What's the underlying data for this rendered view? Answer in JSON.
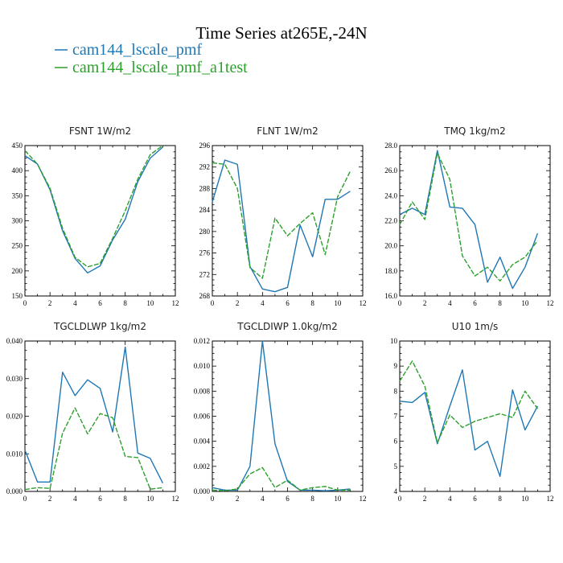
{
  "figure": {
    "title": "Time Series at265E,-24N",
    "legend": [
      {
        "label": "cam144_lscale_pmf",
        "color": "#1f77b4"
      },
      {
        "label": "cam144_lscale_pmf_a1test",
        "color": "#2ca02c"
      }
    ]
  },
  "chart_data": [
    {
      "type": "line",
      "title": "FSNT   1W/m2",
      "xlim": [
        0,
        12
      ],
      "ylim": [
        150,
        450
      ],
      "xticks": [
        "0",
        "2",
        "4",
        "6",
        "8",
        "10",
        "12"
      ],
      "yticks": [
        "150",
        "200",
        "250",
        "300",
        "350",
        "400",
        "450"
      ],
      "x": [
        0,
        1,
        2,
        3,
        4,
        5,
        6,
        7,
        8,
        9,
        10,
        11
      ],
      "series": [
        {
          "name": "cam144_lscale_pmf",
          "values": [
            430,
            413,
            362,
            280,
            225,
            196,
            210,
            262,
            303,
            378,
            425,
            447
          ]
        },
        {
          "name": "cam144_lscale_pmf_a1test",
          "values": [
            440,
            413,
            365,
            285,
            227,
            208,
            215,
            265,
            320,
            383,
            432,
            450
          ]
        }
      ]
    },
    {
      "type": "line",
      "title": "FLNT   1W/m2",
      "xlim": [
        0,
        12
      ],
      "ylim": [
        268,
        296
      ],
      "xticks": [
        "0",
        "2",
        "4",
        "6",
        "8",
        "10",
        "12"
      ],
      "yticks": [
        "268",
        "272",
        "276",
        "280",
        "284",
        "288",
        "292",
        "296"
      ],
      "x": [
        0,
        1,
        2,
        3,
        4,
        5,
        6,
        7,
        8,
        9,
        10,
        11
      ],
      "series": [
        {
          "name": "cam144_lscale_pmf",
          "values": [
            285.5,
            293.3,
            292.5,
            273.5,
            269.3,
            268.8,
            269.6,
            281.2,
            275.3,
            286.0,
            286.0,
            287.5
          ]
        },
        {
          "name": "cam144_lscale_pmf_a1test",
          "values": [
            292.8,
            292.5,
            288.0,
            273.3,
            271.3,
            282.5,
            279.2,
            281.5,
            283.5,
            275.7,
            286.5,
            291.2
          ]
        }
      ]
    },
    {
      "type": "line",
      "title": "TMQ   1kg/m2",
      "xlim": [
        0,
        12
      ],
      "ylim": [
        16,
        28
      ],
      "xticks": [
        "0",
        "2",
        "4",
        "6",
        "8",
        "10",
        "12"
      ],
      "yticks": [
        "16.0",
        "18.0",
        "20.0",
        "22.0",
        "24.0",
        "26.0",
        "28.0"
      ],
      "x": [
        0,
        1,
        2,
        3,
        4,
        5,
        6,
        7,
        8,
        9,
        10,
        11
      ],
      "series": [
        {
          "name": "cam144_lscale_pmf",
          "values": [
            22.5,
            23.0,
            22.5,
            27.6,
            23.1,
            23.0,
            21.7,
            17.1,
            19.1,
            16.6,
            18.3,
            21.0
          ]
        },
        {
          "name": "cam144_lscale_pmf_a1test",
          "values": [
            21.7,
            23.5,
            22.1,
            27.4,
            25.3,
            19.2,
            17.6,
            18.3,
            17.2,
            18.5,
            19.1,
            20.4
          ]
        }
      ]
    },
    {
      "type": "line",
      "title": "TGCLDLWP   1kg/m2",
      "xlim": [
        0,
        12
      ],
      "ylim": [
        0,
        0.04
      ],
      "xticks": [
        "0",
        "2",
        "4",
        "6",
        "8",
        "10",
        "12"
      ],
      "yticks": [
        "0.000",
        "0.010",
        "0.020",
        "0.030",
        "0.040"
      ],
      "x": [
        0,
        1,
        2,
        3,
        4,
        5,
        6,
        7,
        8,
        9,
        10,
        11
      ],
      "series": [
        {
          "name": "cam144_lscale_pmf",
          "values": [
            0.011,
            0.0025,
            0.0025,
            0.0317,
            0.0255,
            0.0297,
            0.0274,
            0.0158,
            0.0384,
            0.0102,
            0.0088,
            0.0022
          ]
        },
        {
          "name": "cam144_lscale_pmf_a1test",
          "values": [
            0.0005,
            0.001,
            0.0008,
            0.0155,
            0.0222,
            0.0153,
            0.0207,
            0.0196,
            0.0093,
            0.009,
            0.0006,
            0.001
          ]
        }
      ]
    },
    {
      "type": "line",
      "title": "TGCLDIWP   1.0kg/m2",
      "xlim": [
        0,
        12
      ],
      "ylim": [
        0,
        0.012
      ],
      "xticks": [
        "0",
        "2",
        "4",
        "6",
        "8",
        "10",
        "12"
      ],
      "yticks": [
        "0.000",
        "0.002",
        "0.004",
        "0.006",
        "0.008",
        "0.010",
        "0.012"
      ],
      "x": [
        0,
        1,
        2,
        3,
        4,
        5,
        6,
        7,
        8,
        9,
        10,
        11
      ],
      "series": [
        {
          "name": "cam144_lscale_pmf",
          "values": [
            0.0003,
            0.0001,
            0.0001,
            0.002,
            0.012,
            0.0038,
            0.0008,
            0.0001,
            0.0001,
            5e-05,
            0.0001,
            0.0002
          ]
        },
        {
          "name": "cam144_lscale_pmf_a1test",
          "values": [
            0.0001,
            5e-05,
            0.0002,
            0.0014,
            0.0019,
            0.0003,
            0.0009,
            0.0001,
            0.0003,
            0.0004,
            0.0001,
            0.0001
          ]
        }
      ]
    },
    {
      "type": "line",
      "title": "U10   1m/s",
      "xlim": [
        0,
        12
      ],
      "ylim": [
        4,
        10
      ],
      "xticks": [
        "0",
        "2",
        "4",
        "6",
        "8",
        "10",
        "12"
      ],
      "yticks": [
        "4",
        "5",
        "6",
        "7",
        "8",
        "9",
        "10"
      ],
      "x": [
        0,
        1,
        2,
        3,
        4,
        5,
        6,
        7,
        8,
        9,
        10,
        11
      ],
      "series": [
        {
          "name": "cam144_lscale_pmf",
          "values": [
            7.6,
            7.55,
            7.95,
            5.9,
            7.4,
            8.85,
            5.65,
            6.0,
            4.6,
            8.05,
            6.45,
            7.4
          ]
        },
        {
          "name": "cam144_lscale_pmf_a1test",
          "values": [
            8.4,
            9.2,
            8.2,
            5.95,
            7.05,
            6.55,
            6.8,
            6.95,
            7.1,
            6.95,
            8.0,
            7.3
          ]
        }
      ]
    }
  ]
}
